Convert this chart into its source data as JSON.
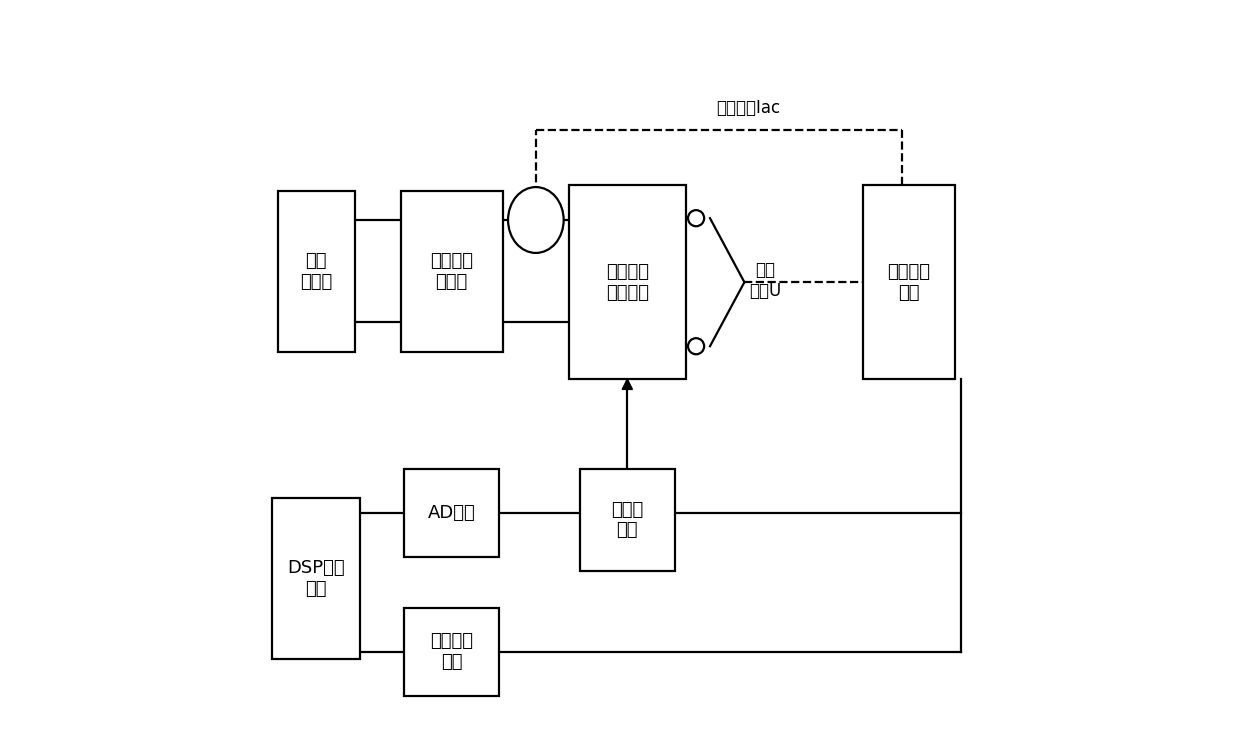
{
  "bg_color": "#ffffff",
  "line_color": "#000000",
  "text_color": "#000000",
  "fig_width": 12.4,
  "fig_height": 7.4,
  "dpi": 100,
  "lw": 1.6,
  "font_size": 13,
  "boxes": {
    "signal_gen": [
      0.085,
      0.635,
      0.105,
      0.22
    ],
    "amplifier": [
      0.27,
      0.635,
      0.14,
      0.22
    ],
    "transducer": [
      0.51,
      0.62,
      0.16,
      0.265
    ],
    "signal_cond": [
      0.895,
      0.62,
      0.125,
      0.265
    ],
    "prestress": [
      0.51,
      0.295,
      0.13,
      0.14
    ],
    "dsp": [
      0.085,
      0.215,
      0.12,
      0.22
    ],
    "ad": [
      0.27,
      0.305,
      0.13,
      0.12
    ],
    "zero_cross": [
      0.27,
      0.115,
      0.13,
      0.12
    ]
  },
  "labels": {
    "signal_gen": "信号\n发生器",
    "amplifier": "数字功率\n放大器",
    "transducer": "超磁致伸\n缩换能器",
    "signal_cond": "信号调理\n电路",
    "prestress": "预应力\n调节",
    "dsp": "DSP数据\n处理",
    "ad": "AD采样",
    "zero_cross": "过零捕获\n电路"
  },
  "iac_label": "驱动电流Iac",
  "sense_label": "感应\n电压U"
}
